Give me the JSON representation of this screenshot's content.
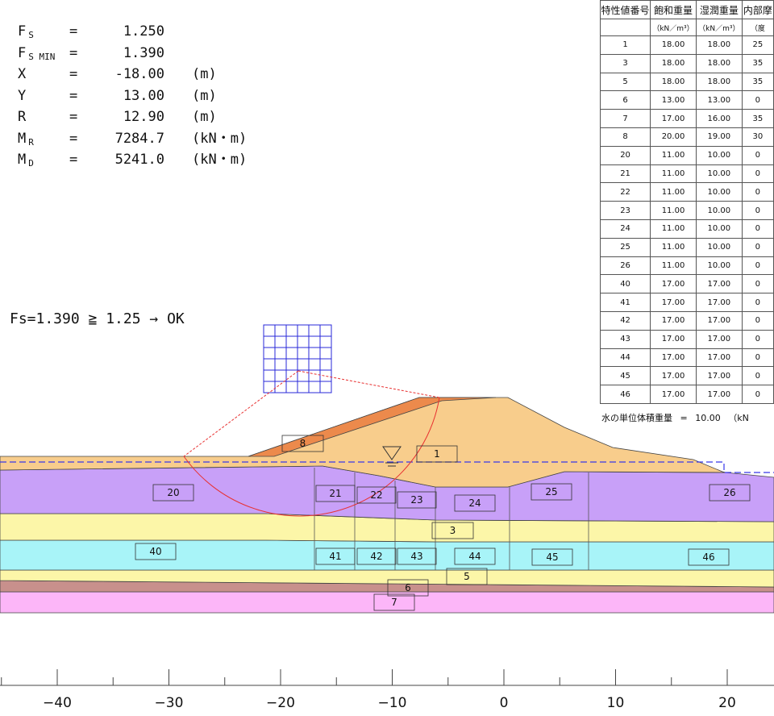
{
  "results": [
    {
      "name": "F",
      "sub": "S",
      "eq": "=",
      "value": "1.250",
      "unit": ""
    },
    {
      "name": "F",
      "sub": "S MIN",
      "eq": "=",
      "value": "1.390",
      "unit": ""
    },
    {
      "name": "X",
      "sub": "",
      "eq": "=",
      "value": "-18.00",
      "unit": "(m)"
    },
    {
      "name": "Y",
      "sub": "",
      "eq": "=",
      "value": "13.00",
      "unit": "(m)"
    },
    {
      "name": "R",
      "sub": "",
      "eq": "=",
      "value": "12.90",
      "unit": "(m)"
    },
    {
      "name": "M",
      "sub": "R",
      "eq": "=",
      "value": "7284.7",
      "unit": "(kN・m)"
    },
    {
      "name": "M",
      "sub": "D",
      "eq": "=",
      "value": "5241.0",
      "unit": "(kN・m)"
    }
  ],
  "verdict": "Fs=1.390 ≧ 1.25 → OK",
  "table": {
    "headers": [
      "特性値番号",
      "飽和重量",
      "湿潤重量",
      "内部摩"
    ],
    "units": [
      "",
      "（kN／m³）",
      "（kN／m³）",
      "（度"
    ],
    "rows": [
      [
        "1",
        "18.00",
        "18.00",
        "25"
      ],
      [
        "3",
        "18.00",
        "18.00",
        "35"
      ],
      [
        "5",
        "18.00",
        "18.00",
        "35"
      ],
      [
        "6",
        "13.00",
        "13.00",
        "0"
      ],
      [
        "7",
        "17.00",
        "16.00",
        "35"
      ],
      [
        "8",
        "20.00",
        "19.00",
        "30"
      ],
      [
        "20",
        "11.00",
        "10.00",
        "0"
      ],
      [
        "21",
        "11.00",
        "10.00",
        "0"
      ],
      [
        "22",
        "11.00",
        "10.00",
        "0"
      ],
      [
        "23",
        "11.00",
        "10.00",
        "0"
      ],
      [
        "24",
        "11.00",
        "10.00",
        "0"
      ],
      [
        "25",
        "11.00",
        "10.00",
        "0"
      ],
      [
        "26",
        "11.00",
        "10.00",
        "0"
      ],
      [
        "40",
        "17.00",
        "17.00",
        "0"
      ],
      [
        "41",
        "17.00",
        "17.00",
        "0"
      ],
      [
        "42",
        "17.00",
        "17.00",
        "0"
      ],
      [
        "43",
        "17.00",
        "17.00",
        "0"
      ],
      [
        "44",
        "17.00",
        "17.00",
        "0"
      ],
      [
        "45",
        "17.00",
        "17.00",
        "0"
      ],
      [
        "46",
        "17.00",
        "17.00",
        "0"
      ]
    ]
  },
  "water_note": {
    "label": "水の単位体積重量",
    "eq": "=",
    "value": "10.00",
    "unit": "（kN"
  },
  "section": {
    "layer_labels": [
      "8",
      "1",
      "20",
      "21",
      "22",
      "23",
      "24",
      "25",
      "26",
      "3",
      "40",
      "41",
      "42",
      "43",
      "44",
      "45",
      "46",
      "5",
      "6",
      "7"
    ],
    "axis": {
      "ticks": [
        -40,
        -30,
        -20,
        -10,
        0,
        10,
        20
      ],
      "labels": [
        "−40",
        "−30",
        "−20",
        "−10",
        "0",
        "10",
        "20"
      ]
    },
    "circle_center_x": -18.0,
    "circle_center_y": 13.0,
    "circle_radius": 12.9
  },
  "colors": {
    "embankment": "#f8cd8c",
    "crest_layer": "#ec8a4c",
    "soft_clay": "#c8a0f8",
    "sand": "#fcf6a8",
    "cyan_layer": "#a8f4f8",
    "brown_layer": "#c8908c",
    "pink_layer": "#fcb6f8",
    "slip_circle": "#e83030",
    "water_line": "#3838e8",
    "grid": "#2828d8"
  }
}
